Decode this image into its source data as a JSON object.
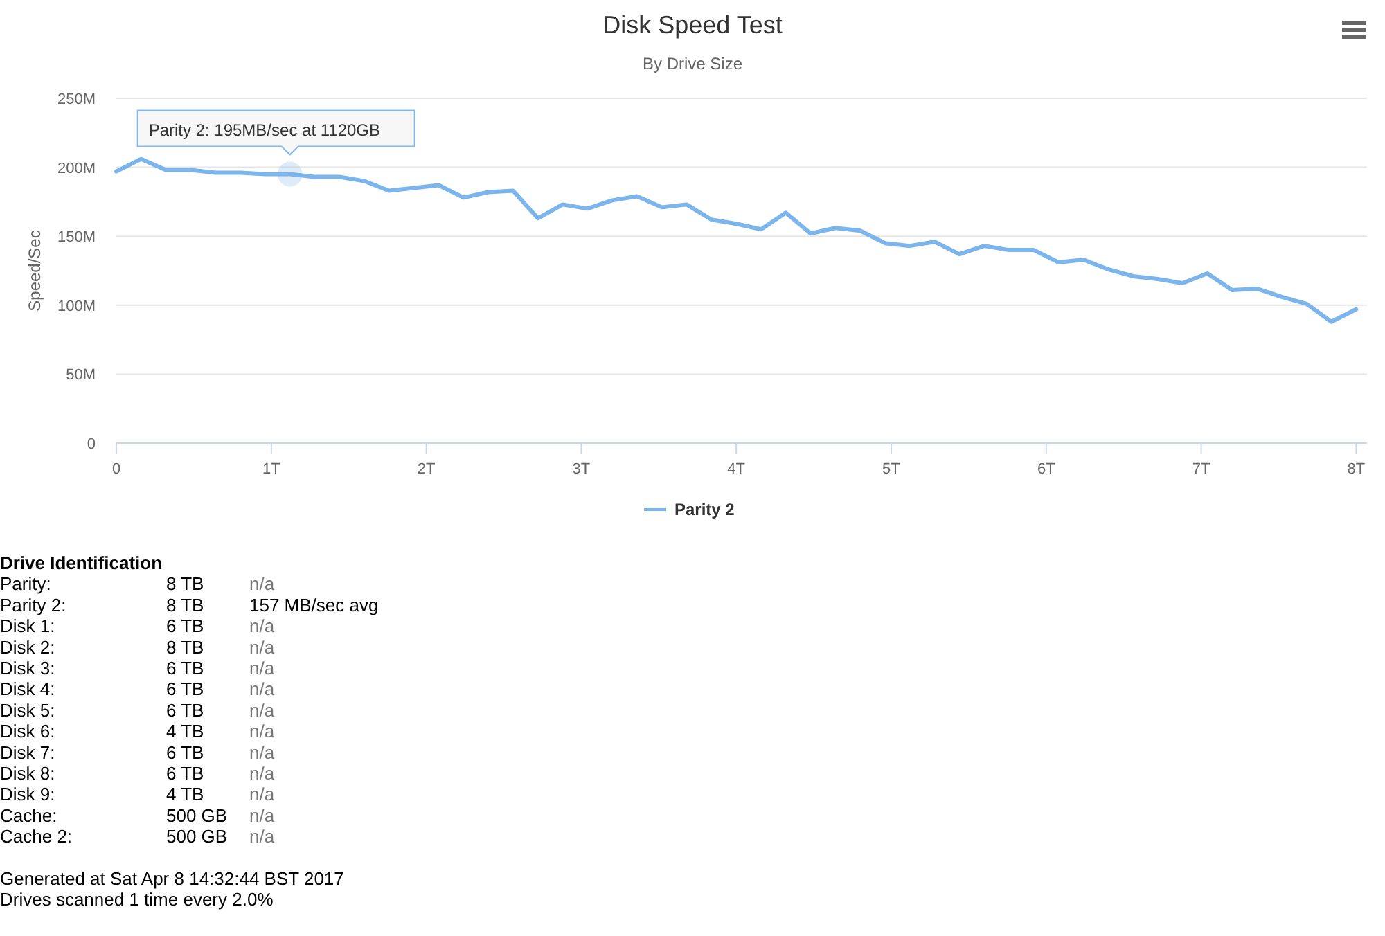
{
  "chart_data": {
    "type": "line",
    "title": "Disk Speed Test",
    "subtitle": "By Drive Size",
    "ylabel": "Speed/Sec",
    "x": [
      0,
      0.16,
      0.32,
      0.48,
      0.64,
      0.8,
      0.96,
      1.12,
      1.28,
      1.44,
      1.6,
      1.76,
      1.92,
      2.08,
      2.24,
      2.4,
      2.56,
      2.72,
      2.88,
      3.04,
      3.2,
      3.36,
      3.52,
      3.68,
      3.84,
      4,
      4.16,
      4.32,
      4.48,
      4.64,
      4.8,
      4.96,
      5.12,
      5.28,
      5.44,
      5.6,
      5.76,
      5.92,
      6.08,
      6.24,
      6.4,
      6.56,
      6.72,
      6.88,
      7.04,
      7.2,
      7.36,
      7.52,
      7.68,
      7.84,
      8
    ],
    "series": [
      {
        "name": "Parity 2",
        "color": "#7cb5ec",
        "values": [
          197,
          206,
          198,
          198,
          196,
          196,
          195,
          195,
          193,
          193,
          190,
          183,
          185,
          187,
          178,
          182,
          183,
          163,
          173,
          170,
          176,
          179,
          171,
          173,
          162,
          159,
          155,
          167,
          152,
          156,
          154,
          145,
          143,
          146,
          137,
          143,
          140,
          140,
          131,
          133,
          126,
          121,
          119,
          116,
          123,
          111,
          112,
          106,
          101,
          88,
          97
        ]
      }
    ],
    "xlim": [
      0,
      8.07
    ],
    "xticks": [
      {
        "value": 0,
        "label": "0"
      },
      {
        "value": 1,
        "label": "1T"
      },
      {
        "value": 2,
        "label": "2T"
      },
      {
        "value": 3,
        "label": "3T"
      },
      {
        "value": 4,
        "label": "4T"
      },
      {
        "value": 5,
        "label": "5T"
      },
      {
        "value": 6,
        "label": "6T"
      },
      {
        "value": 7,
        "label": "7T"
      },
      {
        "value": 8,
        "label": "8T"
      }
    ],
    "ylim": [
      0,
      250
    ],
    "yticks": [
      {
        "value": 0,
        "label": "0"
      },
      {
        "value": 50,
        "label": "50M"
      },
      {
        "value": 100,
        "label": "100M"
      },
      {
        "value": 150,
        "label": "150M"
      },
      {
        "value": 200,
        "label": "200M"
      },
      {
        "value": 250,
        "label": "250M"
      }
    ],
    "grid": "y",
    "legend": "bottom",
    "marker": "none",
    "line_style": "solid",
    "annotations": [
      {
        "text": "Parity 2: 195MB/sec at 1120GB",
        "x": 1.12,
        "y": 195
      },
      "Drive Identification",
      "Parity:\t8 TB\tn/a",
      "Parity 2:\t8 TB\t157 MB/sec avg",
      "Disk 1:\t6 TB\tn/a",
      "Disk 2:\t8 TB\tn/a",
      "Disk 3:\t6 TB\tn/a",
      "Disk 4:\t6 TB\tn/a",
      "Disk 5:\t6 TB\tn/a",
      "Disk 6:\t4 TB\tn/a",
      "Disk 7:\t6 TB\tn/a",
      "Disk 8:\t6 TB\tn/a",
      "Disk 9:\t4 TB\tn/a",
      "Cache:\t500 GB\tn/a",
      "Cache 2:\t500 GB\tn/a",
      "Generated at Sat Apr 8 14:32:44 BST 2017",
      "Drives scanned 1 time every 2.0%"
    ]
  }
}
